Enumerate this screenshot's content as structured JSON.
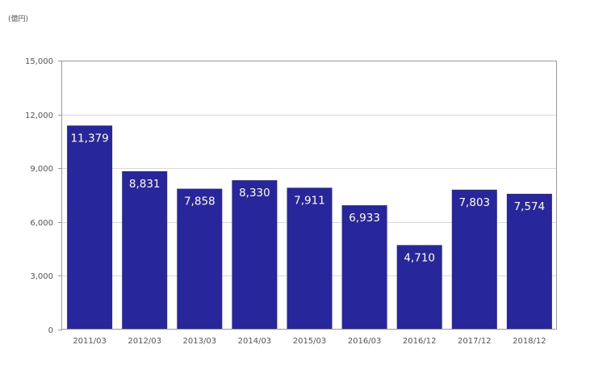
{
  "chart_data": {
    "type": "bar",
    "unit_label": "(億円)",
    "categories": [
      "2011/03",
      "2012/03",
      "2013/03",
      "2014/03",
      "2015/03",
      "2016/03",
      "2016/12",
      "2017/12",
      "2018/12"
    ],
    "values": [
      11379,
      8831,
      7858,
      8330,
      7911,
      6933,
      4710,
      7803,
      7574
    ],
    "data_labels": [
      "11,379",
      "8,831",
      "7,858",
      "8,330",
      "7,911",
      "6,933",
      "4,710",
      "7,803",
      "7,574"
    ],
    "yticks": [
      0,
      3000,
      6000,
      9000,
      12000,
      15000
    ],
    "ytick_labels": [
      "0",
      "3,000",
      "6,000",
      "9,000",
      "12,000",
      "15,000"
    ],
    "ylim": [
      0,
      15000
    ],
    "grid": true,
    "bar_color": "#27279b"
  }
}
